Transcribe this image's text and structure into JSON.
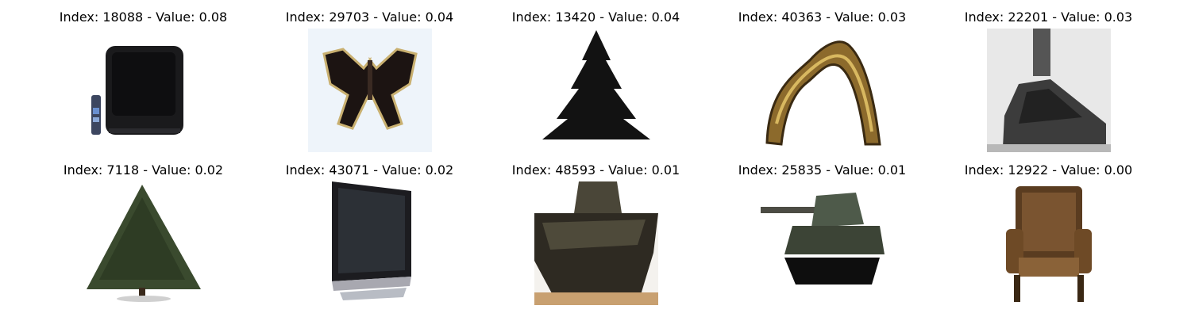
{
  "tiles": [
    {
      "caption": "Index: 18088 - Value: 0.08",
      "subject": "crt-television"
    },
    {
      "caption": "Index: 29703 - Value: 0.04",
      "subject": "butterfly"
    },
    {
      "caption": "Index: 13420 - Value: 0.04",
      "subject": "pine-tree-silhouette"
    },
    {
      "caption": "Index: 40363 - Value: 0.03",
      "subject": "caterpillar"
    },
    {
      "caption": "Index: 22201 - Value: 0.03",
      "subject": "steam-locomotive"
    },
    {
      "caption": "Index: 7118 - Value: 0.02",
      "subject": "evergreen-tree"
    },
    {
      "caption": "Index: 43071 - Value: 0.02",
      "subject": "flat-screen-tv"
    },
    {
      "caption": "Index: 48593 - Value: 0.01",
      "subject": "tank-closeup"
    },
    {
      "caption": "Index: 25835 - Value: 0.01",
      "subject": "tank"
    },
    {
      "caption": "Index: 12922 - Value: 0.00",
      "subject": "armchair"
    }
  ]
}
